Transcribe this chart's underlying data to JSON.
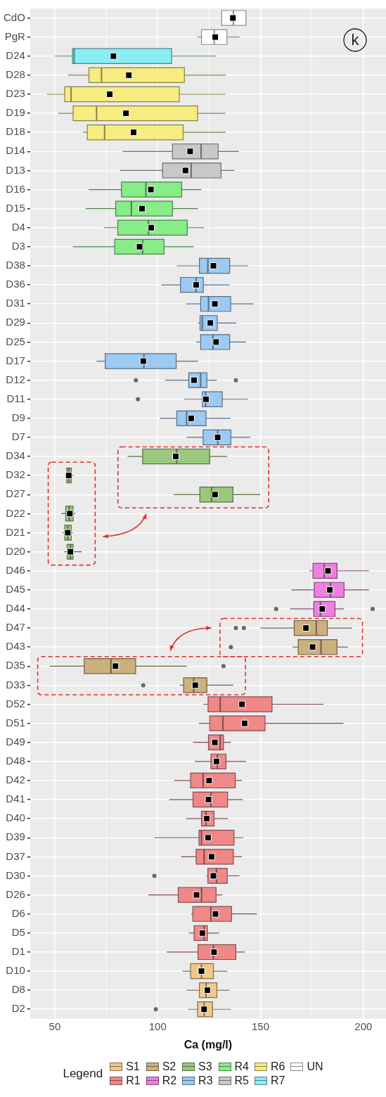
{
  "chart_data": {
    "type": "box",
    "orientation": "horizontal",
    "xlabel": "Ca (mg/l)",
    "legend_title": "Legend",
    "legend": "bottom",
    "grid": true,
    "marker": "square",
    "annotations": [
      "k"
    ],
    "categories": [
      "CdO",
      "PgR",
      "D24",
      "D28",
      "D23",
      "D19",
      "D18",
      "D14",
      "D13",
      "D16",
      "D15",
      "D4",
      "D3",
      "D38",
      "D36",
      "D31",
      "D29",
      "D25",
      "D17",
      "D12",
      "D11",
      "D9",
      "D7",
      "D34",
      "D32",
      "D27",
      "D22",
      "D21",
      "D20",
      "D46",
      "D45",
      "D44",
      "D47",
      "D43",
      "D35",
      "D33",
      "D52",
      "D51",
      "D49",
      "D48",
      "D42",
      "D41",
      "D40",
      "D39",
      "D37",
      "D30",
      "D26",
      "D6",
      "D5",
      "D1",
      "D10",
      "D8",
      "D2"
    ],
    "xlim": [
      38,
      211
    ],
    "xticks": [
      50,
      {
        "value": 75,
        "label": null
      },
      100,
      {
        "value": 125,
        "label": null
      },
      150,
      {
        "value": 175,
        "label": null
      },
      200
    ],
    "series": [
      {
        "name": "S1",
        "color": "#f2c88a",
        "boxes": [
          null,
          null,
          null,
          null,
          null,
          null,
          null,
          null,
          null,
          null,
          null,
          null,
          null,
          null,
          null,
          null,
          null,
          null,
          null,
          null,
          null,
          null,
          null,
          null,
          null,
          null,
          null,
          null,
          null,
          null,
          null,
          null,
          null,
          null,
          null,
          null,
          null,
          null,
          null,
          null,
          null,
          null,
          null,
          null,
          null,
          null,
          null,
          null,
          null,
          null,
          {
            "low": 112,
            "q1": 116,
            "median": 121.3,
            "q3": 127.1,
            "high": 133.8,
            "mean": 121.3
          },
          {
            "low": 114.1,
            "q1": 120.3,
            "median": 123.5,
            "q3": 128.8,
            "high": 135,
            "mean": 124.2
          },
          {
            "low": 114.8,
            "q1": 119.4,
            "median": 122.6,
            "q3": 126.7,
            "high": 135.6,
            "mean": 122.6,
            "outliers": [
              99.1
            ]
          }
        ]
      },
      {
        "name": "R1",
        "color": "#f08888",
        "boxes": [
          null,
          null,
          null,
          null,
          null,
          null,
          null,
          null,
          null,
          null,
          null,
          null,
          null,
          null,
          null,
          null,
          null,
          null,
          null,
          null,
          null,
          null,
          null,
          null,
          null,
          null,
          null,
          null,
          null,
          null,
          null,
          null,
          null,
          null,
          null,
          null,
          {
            "low": 122.1,
            "q1": 124.5,
            "median": 130.4,
            "q3": 155.6,
            "high": 180.6,
            "mean": 141
          },
          {
            "low": 120.1,
            "q1": 125.3,
            "median": 131.7,
            "q3": 152.2,
            "high": 190.3,
            "mean": 142.3
          },
          {
            "low": 117.2,
            "q1": 124.7,
            "median": 130.4,
            "q3": 132,
            "high": 135.6,
            "mean": 127.8
          },
          {
            "low": 118.1,
            "q1": 125.9,
            "median": 129,
            "q3": 133.2,
            "high": 142.9,
            "mean": 128.6
          },
          {
            "low": 108,
            "q1": 116,
            "median": 122.1,
            "q3": 137.7,
            "high": 141,
            "mean": 125
          },
          {
            "low": 105.6,
            "q1": 117.2,
            "median": 125.9,
            "q3": 134,
            "high": 141.4,
            "mean": 124.7
          },
          {
            "low": 113.8,
            "q1": 121.3,
            "median": 123.5,
            "q3": 127.4,
            "high": 134.2,
            "mean": 123.9
          },
          {
            "low": 98.4,
            "q1": 120.1,
            "median": 121.3,
            "q3": 137.1,
            "high": 141.7,
            "mean": 124.5
          },
          {
            "low": 111.4,
            "q1": 118.7,
            "median": 122.6,
            "q3": 136.8,
            "high": 141,
            "mean": 126.2
          },
          {
            "low": 123.5,
            "q1": 124.4,
            "median": 128.6,
            "q3": 133.8,
            "high": 139.8,
            "mean": 127.1,
            "outliers": [
              98.4
            ]
          },
          {
            "low": 95.5,
            "q1": 110,
            "median": 121.3,
            "q3": 128.4,
            "high": 131.4,
            "mean": 118.9
          },
          {
            "low": 116.3,
            "q1": 117.1,
            "median": 125.9,
            "q3": 135.9,
            "high": 148.3,
            "mean": 128.1
          },
          {
            "low": 115.1,
            "q1": 117.7,
            "median": 122.6,
            "q3": 124.2,
            "high": 129.9,
            "mean": 121.7
          },
          {
            "low": 104.5,
            "q1": 119.6,
            "median": 127.1,
            "q3": 138,
            "high": 142.3,
            "mean": 127.4
          },
          null,
          null,
          null
        ]
      },
      {
        "name": "S2",
        "color": "#ccb07e",
        "boxes": [
          null,
          null,
          null,
          null,
          null,
          null,
          null,
          null,
          null,
          null,
          null,
          null,
          null,
          null,
          null,
          null,
          null,
          null,
          null,
          null,
          null,
          null,
          null,
          null,
          null,
          null,
          null,
          null,
          null,
          null,
          null,
          null,
          {
            "low": 149.9,
            "q1": 166.4,
            "median": 177.1,
            "q3": 182.5,
            "high": 194.6,
            "mean": 172.1,
            "outliers": [
              138,
              141.9
            ]
          },
          {
            "low": 165.6,
            "q1": 168.3,
            "median": 179.4,
            "q3": 187.2,
            "high": 192.4,
            "mean": 175.3,
            "outliers": [
              135.6
            ]
          },
          {
            "low": 47.6,
            "q1": 64.3,
            "median": 77.3,
            "q3": 89.3,
            "high": 114.2,
            "mean": 79.5,
            "outliers": [
              132
            ]
          },
          {
            "low": 110.8,
            "q1": 112.6,
            "median": 117.5,
            "q3": 123.9,
            "high": 136.8,
            "mean": 118.3,
            "outliers": [
              93
            ]
          },
          null,
          null,
          null,
          null,
          null,
          null,
          null,
          null,
          null,
          null,
          null,
          null,
          null,
          null,
          null,
          null,
          null
        ]
      },
      {
        "name": "R2",
        "color": "#f080e0",
        "boxes": [
          null,
          null,
          null,
          null,
          null,
          null,
          null,
          null,
          null,
          null,
          null,
          null,
          null,
          null,
          null,
          null,
          null,
          null,
          null,
          null,
          null,
          null,
          null,
          null,
          null,
          null,
          null,
          null,
          null,
          {
            "low": 173.7,
            "q1": 175.5,
            "median": 181,
            "q3": 187.2,
            "high": 202.7,
            "mean": 182.8
          },
          {
            "low": 165,
            "q1": 176.1,
            "median": 184,
            "q3": 190.6,
            "high": 202.7,
            "mean": 183.7
          },
          {
            "low": 164.4,
            "q1": 175.9,
            "median": 179.1,
            "q3": 186.2,
            "high": 190.6,
            "mean": 180,
            "outliers": [
              157.6,
              204.5
            ]
          },
          null,
          null,
          null,
          null,
          null,
          null,
          null,
          null,
          null,
          null,
          null,
          null,
          null,
          null,
          null,
          null,
          null,
          null,
          null,
          null,
          null
        ]
      },
      {
        "name": "S3",
        "color": "#9cc87e",
        "boxes": [
          null,
          null,
          null,
          null,
          null,
          null,
          null,
          null,
          null,
          null,
          null,
          null,
          null,
          null,
          null,
          null,
          null,
          null,
          null,
          null,
          null,
          null,
          null,
          {
            "low": 85.4,
            "q1": 92.7,
            "median": 109.3,
            "q3": 125.3,
            "high": 133.8,
            "mean": 108.8
          },
          {
            "low": 55,
            "q1": 55.8,
            "median": 56.8,
            "q3": 58,
            "high": 59,
            "mean": 56.8
          },
          {
            "low": 107.8,
            "q1": 120.5,
            "median": 126.2,
            "q3": 136.6,
            "high": 149.9,
            "mean": 127.9
          },
          {
            "low": 53.1,
            "q1": 55.3,
            "median": 57,
            "q3": 58.9,
            "high": 60,
            "mean": 57.3
          },
          {
            "low": 53.6,
            "q1": 54.8,
            "median": 56.3,
            "q3": 58,
            "high": 58.8,
            "mean": 56.3
          },
          {
            "low": 54.6,
            "q1": 56,
            "median": 57.6,
            "q3": 58.9,
            "high": 63.1,
            "mean": 57.6
          },
          null,
          null,
          null,
          null,
          null,
          null,
          null,
          null,
          null,
          null,
          null,
          null,
          null,
          null,
          null,
          null,
          null,
          null,
          null,
          null,
          null,
          null,
          null,
          null
        ]
      },
      {
        "name": "R3",
        "color": "#9ccaf2",
        "boxes": [
          null,
          null,
          null,
          null,
          null,
          null,
          null,
          null,
          null,
          null,
          null,
          null,
          null,
          {
            "low": 109.3,
            "q1": 120.3,
            "median": 124.4,
            "q3": 135,
            "high": 144.1,
            "mean": 127.1
          },
          {
            "low": 101.8,
            "q1": 111.1,
            "median": 118.7,
            "q3": 122.2,
            "high": 134.9,
            "mean": 118.7
          },
          {
            "low": 113.8,
            "q1": 120.9,
            "median": 124.7,
            "q3": 135.5,
            "high": 146.7,
            "mean": 127.8
          },
          {
            "low": 119.6,
            "q1": 120.6,
            "median": 121.7,
            "q3": 129,
            "high": 138.3,
            "mean": 125.6
          },
          {
            "low": 118.7,
            "q1": 120.9,
            "median": 126.9,
            "q3": 135,
            "high": 142.9,
            "mean": 128.4
          },
          {
            "low": 70.3,
            "q1": 74.5,
            "median": 93.3,
            "q3": 109,
            "high": 119.6,
            "mean": 93
          },
          {
            "low": 103.6,
            "q1": 115.1,
            "median": 120.9,
            "q3": 123.9,
            "high": 128.7,
            "mean": 117.7,
            "outliers": [
              89.4,
              138
            ]
          },
          {
            "low": 112.9,
            "q1": 121.7,
            "median": 123.3,
            "q3": 131.4,
            "high": 143.8,
            "mean": 123.5,
            "outliers": [
              90.4
            ]
          },
          {
            "low": 101.1,
            "q1": 109.3,
            "median": 114.1,
            "q3": 123.5,
            "high": 135.4,
            "mean": 116.3
          },
          {
            "low": 114.1,
            "q1": 122.1,
            "median": 129.2,
            "q3": 135.6,
            "high": 145,
            "mean": 129.2
          },
          null,
          null,
          null,
          null,
          null,
          null,
          null,
          null,
          null,
          null,
          null,
          null,
          null,
          null,
          null,
          null,
          null,
          null,
          null,
          null,
          null,
          null,
          null,
          null,
          null,
          null,
          null,
          null,
          null,
          null
        ]
      },
      {
        "name": "R4",
        "color": "#88ec88",
        "boxes": [
          null,
          null,
          null,
          null,
          null,
          null,
          null,
          null,
          null,
          {
            "low": 66.4,
            "q1": 82.4,
            "median": 94.3,
            "q3": 111.7,
            "high": 121.3,
            "mean": 96.7
          },
          {
            "low": 64.9,
            "q1": 79.6,
            "median": 87.2,
            "q3": 107.2,
            "high": 119.6,
            "mean": 92.4
          },
          {
            "low": 73.9,
            "q1": 80.6,
            "median": 95.5,
            "q3": 114.4,
            "high": 122.7,
            "mean": 96.9
          },
          {
            "low": 58.8,
            "q1": 79.1,
            "median": 92.7,
            "q3": 103.1,
            "high": 117.5,
            "mean": 91.2
          },
          null,
          null,
          null,
          null,
          null,
          null,
          null,
          null,
          null,
          null,
          null,
          null,
          null,
          null,
          null,
          null,
          null,
          null,
          null,
          null,
          null,
          null,
          null,
          null,
          null,
          null,
          null,
          null,
          null,
          null,
          null,
          null,
          null,
          null,
          null,
          null,
          null,
          null,
          null,
          null
        ]
      },
      {
        "name": "R5",
        "color": "#c8c8c8",
        "boxes": [
          null,
          null,
          null,
          null,
          null,
          null,
          null,
          {
            "low": 83,
            "q1": 107.2,
            "median": 121.1,
            "q3": 129.4,
            "high": 139.5,
            "mean": 115.8
          },
          {
            "low": 81.6,
            "q1": 102.4,
            "median": 116.3,
            "q3": 130.8,
            "high": 137.4,
            "mean": 113.5
          },
          null,
          null,
          null,
          null,
          null,
          null,
          null,
          null,
          null,
          null,
          null,
          null,
          null,
          null,
          null,
          null,
          null,
          null,
          null,
          null,
          null,
          null,
          null,
          null,
          null,
          null,
          null,
          null,
          null,
          null,
          null,
          null,
          null,
          null,
          null,
          null,
          null,
          null,
          null,
          null,
          null,
          null,
          null,
          null
        ]
      },
      {
        "name": "R6",
        "color": "#f6ec80",
        "boxes": [
          null,
          null,
          null,
          {
            "low": 56.4,
            "q1": 66.6,
            "median": 72.7,
            "q3": 113,
            "high": 133.2,
            "mean": 86
          },
          {
            "low": 46.1,
            "q1": 54.8,
            "median": 57.9,
            "q3": 110.5,
            "high": 133,
            "mean": 76.7
          },
          {
            "low": 51.6,
            "q1": 58.9,
            "median": 70.3,
            "q3": 119.4,
            "high": 133,
            "mean": 84.6
          },
          {
            "low": 63.7,
            "q1": 65.8,
            "median": 74.2,
            "q3": 112.4,
            "high": 133.2,
            "mean": 88.3
          },
          null,
          null,
          null,
          null,
          null,
          null,
          null,
          null,
          null,
          null,
          null,
          null,
          null,
          null,
          null,
          null,
          null,
          null,
          null,
          null,
          null,
          null,
          null,
          null,
          null,
          null,
          null,
          null,
          null,
          null,
          null,
          null,
          null,
          null,
          null,
          null,
          null,
          null,
          null,
          null,
          null,
          null,
          null,
          null,
          null,
          null
        ]
      },
      {
        "name": "R7",
        "color": "#88eef4",
        "boxes": [
          null,
          null,
          {
            "low": 50,
            "q1": 58.6,
            "median": 59.4,
            "q3": 106.8,
            "high": 128.4,
            "mean": 78.5
          },
          null,
          null,
          null,
          null,
          null,
          null,
          null,
          null,
          null,
          null,
          null,
          null,
          null,
          null,
          null,
          null,
          null,
          null,
          null,
          null,
          null,
          null,
          null,
          null,
          null,
          null,
          null,
          null,
          null,
          null,
          null,
          null,
          null,
          null,
          null,
          null,
          null,
          null,
          null,
          null,
          null,
          null,
          null,
          null,
          null,
          null,
          null,
          null,
          null,
          null
        ]
      },
      {
        "name": "UN",
        "color": "#ffffff",
        "boxes": [
          {
            "low": 131.1,
            "q1": 131.1,
            "median": 136.8,
            "q3": 142.9,
            "high": 143.5,
            "mean": 136.6
          },
          {
            "low": 119.3,
            "q1": 121.3,
            "median": 127.5,
            "q3": 133.7,
            "high": 139.8,
            "mean": 128
          },
          null,
          null,
          null,
          null,
          null,
          null,
          null,
          null,
          null,
          null,
          null,
          null,
          null,
          null,
          null,
          null,
          null,
          null,
          null,
          null,
          null,
          null,
          null,
          null,
          null,
          null,
          null,
          null,
          null,
          null,
          null,
          null,
          null,
          null,
          null,
          null,
          null,
          null,
          null,
          null,
          null,
          null,
          null,
          null,
          null,
          null,
          null,
          null,
          null,
          null,
          null
        ]
      }
    ]
  }
}
